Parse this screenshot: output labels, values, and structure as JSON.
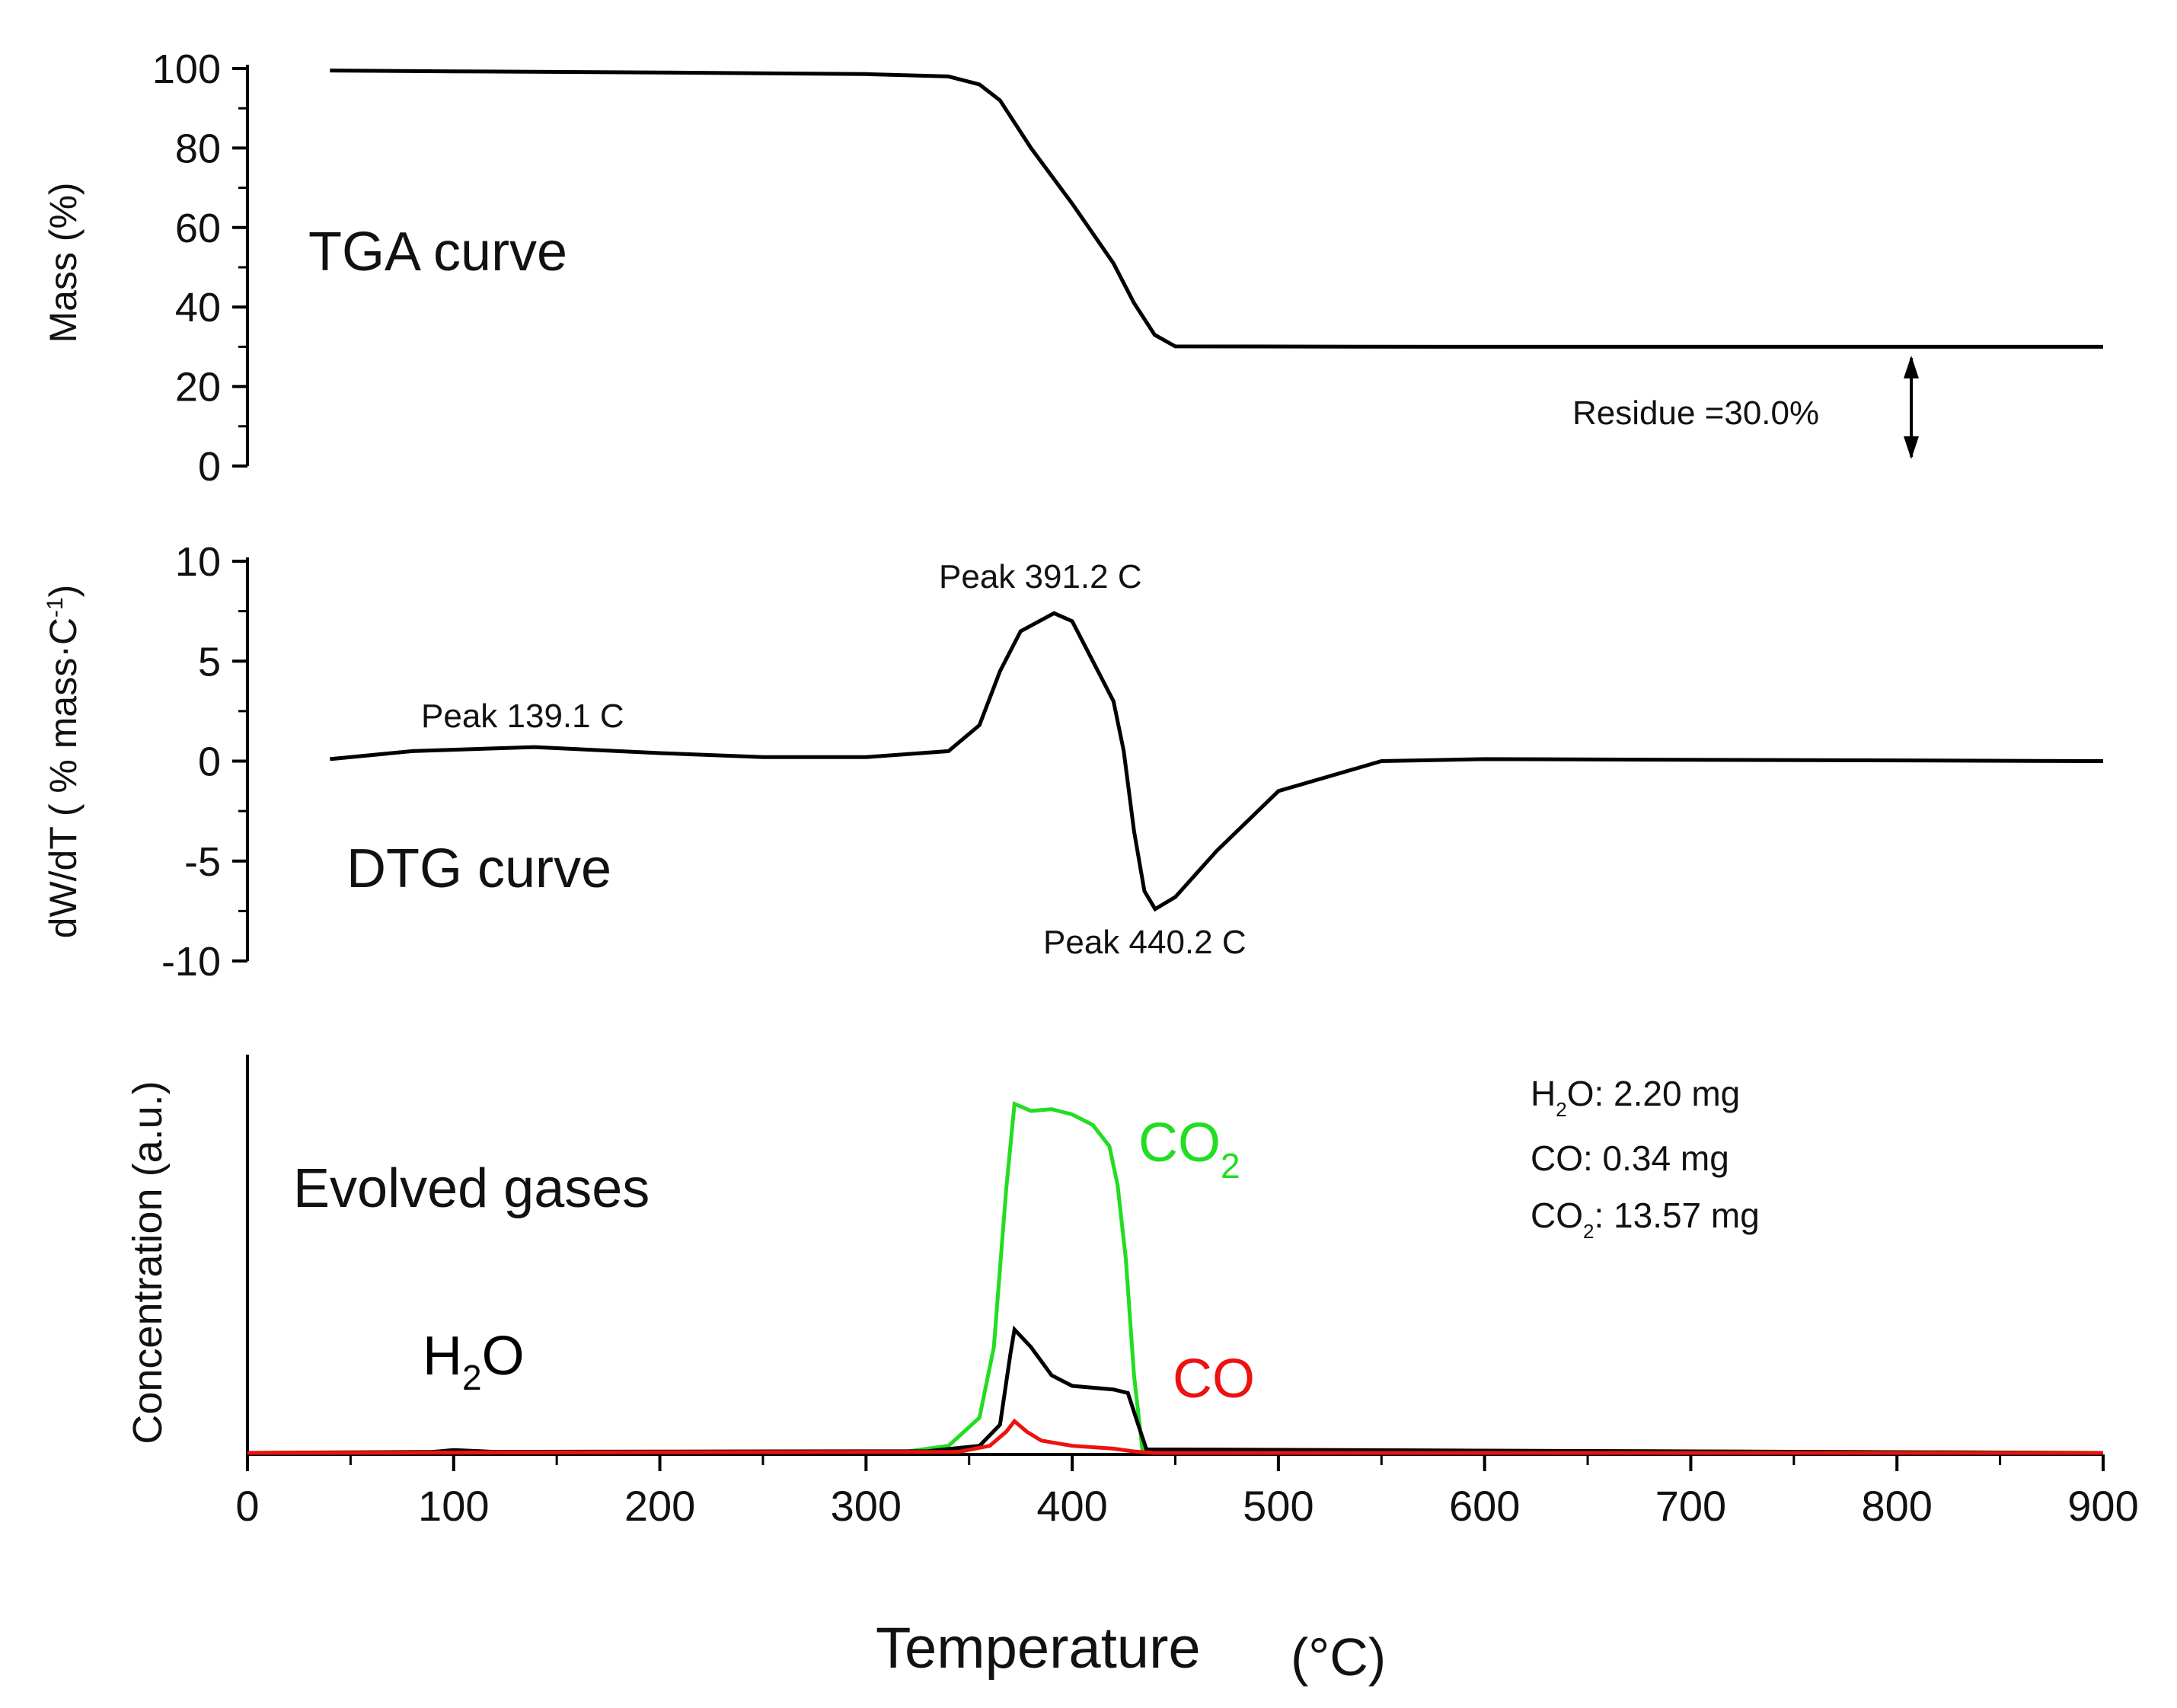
{
  "chart_data": [
    {
      "type": "line",
      "panel": "top",
      "title": "TGA curve",
      "xlabel": "",
      "ylabel": "Mass (%)",
      "xlim": [
        0,
        900
      ],
      "ylim": [
        0,
        100
      ],
      "yticks": [
        0,
        20,
        40,
        60,
        80,
        100
      ],
      "series": [
        {
          "name": "Mass",
          "color": "#000000",
          "x": [
            40,
            100,
            200,
            300,
            340,
            355,
            365,
            380,
            400,
            420,
            430,
            440,
            450,
            600,
            900
          ],
          "y": [
            99.5,
            99.3,
            99.0,
            98.6,
            98.0,
            96.0,
            92.0,
            80.0,
            66.0,
            51.0,
            41.0,
            33.0,
            30.1,
            30.0,
            30.0
          ]
        }
      ],
      "annotations": [
        {
          "text": "Residue =30.0%",
          "x": 745,
          "y": 15
        }
      ]
    },
    {
      "type": "line",
      "panel": "middle",
      "title": "DTG curve",
      "xlabel": "",
      "ylabel_main": "dW/dT ( % mass·C",
      "ylabel_sup": "-1",
      "ylabel_end": ")",
      "xlim": [
        0,
        900
      ],
      "ylim": [
        -10,
        10
      ],
      "yticks": [
        -10,
        -5,
        0,
        5,
        10
      ],
      "series": [
        {
          "name": "DTG",
          "color": "#000000",
          "x": [
            40,
            80,
            139.1,
            200,
            250,
            300,
            340,
            355,
            365,
            375,
            391.2,
            400,
            410,
            420,
            425,
            430,
            435,
            440.2,
            450,
            470,
            500,
            550,
            600,
            900
          ],
          "y": [
            0.1,
            0.5,
            0.7,
            0.4,
            0.2,
            0.2,
            0.5,
            1.8,
            4.5,
            6.5,
            7.4,
            7.0,
            5.0,
            3.0,
            0.5,
            -3.5,
            -6.5,
            -7.4,
            -6.8,
            -4.5,
            -1.5,
            0.0,
            0.1,
            0.0
          ]
        }
      ],
      "annotations": [
        {
          "text": "Peak 139.1 C",
          "x": 139.1,
          "y": 0.7
        },
        {
          "text": "Peak 391.2 C",
          "x": 391.2,
          "y": 7.4
        },
        {
          "text": "Peak 440.2 C",
          "x": 440.2,
          "y": -7.4
        }
      ]
    },
    {
      "type": "line",
      "panel": "bottom",
      "title": "Evolved gases",
      "xlabel": "Temperature",
      "xlabel_unit": "(°C)",
      "ylabel": "Concentration (a.u.)",
      "xlim": [
        0,
        900
      ],
      "ylim": [
        0,
        1
      ],
      "xticks": [
        0,
        100,
        200,
        300,
        400,
        500,
        600,
        700,
        800,
        900
      ],
      "series": [
        {
          "name": "CO2",
          "color": "#22dd22",
          "x": [
            0,
            320,
            340,
            355,
            362,
            368,
            372,
            380,
            390,
            400,
            410,
            418,
            422,
            426,
            430,
            434,
            900
          ],
          "y": [
            0,
            0.004,
            0.02,
            0.1,
            0.3,
            0.75,
            0.99,
            0.97,
            0.975,
            0.96,
            0.93,
            0.87,
            0.76,
            0.55,
            0.22,
            0.01,
            0.0
          ]
        },
        {
          "name": "H2O",
          "color": "#000000",
          "x": [
            0,
            90,
            100,
            120,
            330,
            355,
            365,
            370,
            372,
            380,
            390,
            400,
            420,
            427,
            432,
            436,
            900
          ],
          "y": [
            0,
            0.003,
            0.008,
            0.003,
            0.005,
            0.02,
            0.08,
            0.28,
            0.35,
            0.3,
            0.22,
            0.19,
            0.18,
            0.17,
            0.08,
            0.01,
            0.0
          ]
        },
        {
          "name": "CO",
          "color": "#ee1111",
          "x": [
            0,
            345,
            360,
            368,
            372,
            378,
            385,
            400,
            420,
            430,
            440,
            900
          ],
          "y": [
            0,
            0.003,
            0.02,
            0.06,
            0.09,
            0.06,
            0.035,
            0.02,
            0.012,
            0.004,
            0.0,
            0.0
          ]
        }
      ],
      "series_labels": [
        {
          "text": "H",
          "sub": "2",
          "rest": "O",
          "color": "#000000"
        },
        {
          "text": "CO",
          "sub": "2",
          "rest": "",
          "color": "#22dd22"
        },
        {
          "text": "CO",
          "sub": "",
          "rest": "",
          "color": "#ee1111"
        }
      ],
      "legend_box": [
        {
          "label": "H",
          "sub": "2",
          "rest": "O: 2.20 mg"
        },
        {
          "label": "CO",
          "sub": "",
          "rest": ":  0.34 mg"
        },
        {
          "label": "CO",
          "sub": "2",
          "rest": ": 13.57 mg"
        }
      ]
    }
  ]
}
